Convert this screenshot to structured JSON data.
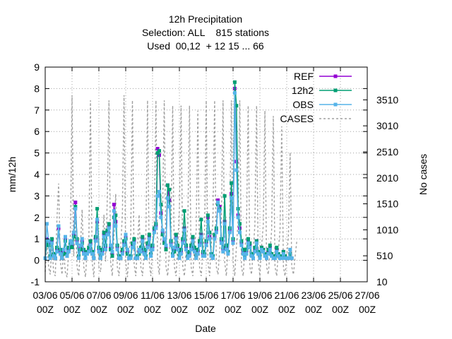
{
  "chart_data": {
    "type": "line",
    "title_lines": [
      "12h Precipitation",
      "Selection: ALL    815 stations",
      "Used  00,12  + 12 15 ... 66"
    ],
    "xlabel": "Date",
    "ylabel": "mm/12h",
    "y2label": "No cases",
    "ylim": [
      -1,
      9
    ],
    "yticks": [
      -1,
      0,
      1,
      2,
      3,
      4,
      5,
      6,
      7,
      8,
      9
    ],
    "y2lim": [
      10,
      4140
    ],
    "y2ticks": [
      10,
      510,
      1010,
      1510,
      2010,
      2510,
      3010,
      3510
    ],
    "xlim": [
      0,
      24
    ],
    "xticks": [
      {
        "x": 0,
        "line1": "03/06",
        "line2": "00Z"
      },
      {
        "x": 2,
        "line1": "05/06",
        "line2": "00Z"
      },
      {
        "x": 4,
        "line1": "07/06",
        "line2": "00Z"
      },
      {
        "x": 6,
        "line1": "09/06",
        "line2": "00Z"
      },
      {
        "x": 8,
        "line1": "11/06",
        "line2": "00Z"
      },
      {
        "x": 10,
        "line1": "13/06",
        "line2": "00Z"
      },
      {
        "x": 12,
        "line1": "15/06",
        "line2": "00Z"
      },
      {
        "x": 14,
        "line1": "17/06",
        "line2": "00Z"
      },
      {
        "x": 16,
        "line1": "19/06",
        "line2": "00Z"
      },
      {
        "x": 18,
        "line1": "21/06",
        "line2": "00Z"
      },
      {
        "x": 20,
        "line1": "23/06",
        "line2": "00Z"
      },
      {
        "x": 22,
        "line1": "25/06",
        "line2": "00Z"
      },
      {
        "x": 24,
        "line1": "27/06",
        "line2": "00Z"
      }
    ],
    "grid": true,
    "legend_position": "top-right",
    "x_step_days": 0.125,
    "series": [
      {
        "name": "REF",
        "color": "#9400d3",
        "axis": "y1",
        "style": "line-points",
        "values": [
          0.1,
          1.0,
          0.8,
          0.2,
          0.9,
          0.3,
          0.1,
          0.5,
          1.5,
          0.4,
          0.1,
          0.4,
          1.0,
          0.3,
          0.5,
          0.8,
          0.7,
          1.2,
          2.7,
          0.9,
          0.2,
          0.6,
          0.9,
          0.4,
          0.1,
          0.4,
          0.5,
          0.8,
          0.4,
          0.1,
          1.0,
          1.8,
          0.5,
          0.2,
          0.4,
          1.2,
          0.6,
          1.3,
          1.6,
          0.6,
          0.3,
          2.6,
          1.8,
          0.6,
          0.2,
          0.1,
          0.4,
          0.8,
          1.1,
          0.4,
          0.1,
          0.2,
          0.7,
          0.9,
          0.1,
          0.2,
          0.4,
          0.5,
          1.0,
          0.4,
          0.2,
          0.7,
          1.1,
          0.3,
          0.6,
          1.4,
          1.6,
          5.2,
          4.9,
          2.2,
          1.3,
          0.9,
          0.6,
          3.5,
          2.8,
          0.8,
          0.3,
          0.5,
          1.1,
          0.6,
          0.2,
          0.4,
          0.9,
          1.5,
          0.6,
          0.2,
          0.3,
          0.6,
          1.0,
          0.5,
          0.2,
          0.4,
          0.8,
          1.2,
          0.3,
          0.3,
          0.8,
          2.0,
          1.1,
          0.3,
          0.2,
          1.1,
          1.4,
          2.8,
          2.5,
          0.9,
          0.5,
          1.8,
          0.6,
          0.4,
          1.4,
          3.1,
          0.9,
          8.0,
          4.6,
          2.1,
          1.5,
          0.8,
          0.4,
          0.2,
          0.4,
          0.9,
          0.7,
          0.3,
          0.1,
          0.5,
          0.9,
          0.4,
          0.2,
          0.6,
          0.5,
          0.3,
          0.1,
          0.4,
          0.6,
          0.3,
          0.1,
          0.2,
          0.5,
          0.3,
          0.1,
          0.2,
          0.4,
          0.2,
          0.1,
          0.1,
          0.3,
          0.1
        ]
      },
      {
        "name": "12h2",
        "color": "#009e73",
        "axis": "y1",
        "style": "line-points",
        "values": [
          0.1,
          0.9,
          0.7,
          0.2,
          1.0,
          0.3,
          0.1,
          0.6,
          1.6,
          0.5,
          0.1,
          0.3,
          0.9,
          0.3,
          0.6,
          0.8,
          0.6,
          1.1,
          2.5,
          1.0,
          0.2,
          0.5,
          0.8,
          0.5,
          0.1,
          0.4,
          0.6,
          0.9,
          0.4,
          0.1,
          1.1,
          2.4,
          0.6,
          0.2,
          0.5,
          1.3,
          0.7,
          1.4,
          1.7,
          0.5,
          0.2,
          2.0,
          2.1,
          0.7,
          0.2,
          0.1,
          0.5,
          0.9,
          1.0,
          0.3,
          0.1,
          0.2,
          0.8,
          1.0,
          0.1,
          0.2,
          0.3,
          0.6,
          1.1,
          0.5,
          0.2,
          0.8,
          1.2,
          0.3,
          0.7,
          1.5,
          1.7,
          5.0,
          5.1,
          2.6,
          1.2,
          0.8,
          0.5,
          3.5,
          3.3,
          0.9,
          0.3,
          0.4,
          1.2,
          0.7,
          0.2,
          0.5,
          1.0,
          2.3,
          0.7,
          0.2,
          0.4,
          0.7,
          1.1,
          0.6,
          0.2,
          0.5,
          0.9,
          1.9,
          0.4,
          0.3,
          0.9,
          2.1,
          1.3,
          0.3,
          0.2,
          1.2,
          1.5,
          2.6,
          2.4,
          1.0,
          0.6,
          3.0,
          0.7,
          0.4,
          1.5,
          3.6,
          1.0,
          8.3,
          7.2,
          2.4,
          1.7,
          0.9,
          0.5,
          0.2,
          0.5,
          1.0,
          0.8,
          0.3,
          0.1,
          0.6,
          0.9,
          0.4,
          0.2,
          0.6,
          0.5,
          0.3,
          0.1,
          0.5,
          0.7,
          0.3,
          0.1,
          0.2,
          0.6,
          0.3,
          0.1,
          0.2,
          0.4,
          0.2,
          0.1,
          0.1,
          0.3,
          0.1
        ]
      },
      {
        "name": "OBS",
        "color": "#56b4e9",
        "axis": "y1",
        "style": "line-points",
        "values": [
          0.1,
          1.7,
          0.9,
          0.1,
          0.8,
          0.2,
          0.1,
          0.4,
          1.6,
          0.3,
          0.1,
          0.5,
          1.1,
          0.2,
          0.4,
          0.9,
          0.8,
          1.3,
          2.4,
          0.8,
          0.1,
          0.7,
          1.0,
          0.3,
          0.1,
          0.3,
          0.4,
          0.7,
          0.3,
          0.1,
          0.9,
          1.9,
          0.4,
          0.1,
          0.3,
          1.1,
          0.5,
          1.2,
          1.5,
          0.7,
          0.4,
          2.3,
          1.6,
          0.5,
          0.1,
          0.1,
          0.3,
          0.7,
          1.2,
          0.5,
          0.1,
          0.1,
          0.6,
          0.8,
          0.1,
          0.1,
          0.5,
          0.4,
          0.9,
          0.3,
          0.1,
          0.6,
          1.0,
          0.2,
          0.5,
          1.3,
          1.5,
          3.0,
          3.2,
          2.0,
          1.4,
          1.0,
          0.7,
          2.9,
          2.5,
          0.7,
          0.2,
          0.6,
          1.0,
          0.5,
          0.1,
          0.3,
          0.8,
          1.4,
          0.5,
          0.1,
          0.2,
          0.5,
          0.9,
          0.4,
          0.1,
          0.3,
          0.7,
          1.1,
          0.2,
          0.2,
          0.7,
          1.8,
          1.0,
          0.2,
          0.1,
          1.0,
          1.3,
          2.7,
          2.3,
          0.8,
          0.4,
          1.7,
          0.5,
          0.3,
          1.3,
          2.9,
          0.8,
          7.8,
          4.2,
          2.0,
          1.3,
          0.7,
          0.3,
          0.1,
          0.3,
          0.8,
          0.6,
          0.2,
          0.1,
          0.4,
          0.8,
          0.3,
          0.1,
          0.5,
          0.4,
          0.2,
          0.1,
          0.3,
          0.5,
          0.2,
          0.1,
          0.1,
          0.4,
          0.2,
          0.1,
          0.1,
          0.3,
          0.1,
          0.1,
          0.1,
          0.5,
          0.1
        ]
      },
      {
        "name": "CASES",
        "color": "#a0a0a0",
        "axis": "y2",
        "style": "dashed",
        "values": [
          200,
          800,
          300,
          150,
          700,
          200,
          120,
          1200,
          1900,
          400,
          150,
          600,
          200,
          100,
          600,
          900,
          3600,
          500,
          1300,
          300,
          120,
          700,
          1400,
          300,
          100,
          600,
          800,
          3500,
          400,
          100,
          900,
          1100,
          300,
          200,
          700,
          1300,
          400,
          1600,
          3500,
          400,
          120,
          900,
          1700,
          300,
          120,
          700,
          1300,
          3600,
          400,
          100,
          600,
          900,
          3500,
          350,
          120,
          700,
          1300,
          300,
          120,
          600,
          900,
          3500,
          400,
          120,
          700,
          1100,
          3500,
          400,
          150,
          900,
          1400,
          3500,
          300,
          120,
          600,
          1000,
          3400,
          300,
          120,
          700,
          1400,
          3400,
          300,
          120,
          600,
          1100,
          3400,
          300,
          120,
          700,
          1000,
          3300,
          300,
          120,
          600,
          1000,
          3500,
          400,
          120,
          700,
          1200,
          3500,
          300,
          150,
          600,
          1100,
          3500,
          400,
          120,
          700,
          1100,
          3500,
          400,
          120,
          700,
          1200,
          3500,
          300,
          120,
          600,
          1000,
          3400,
          300,
          150,
          600,
          1100,
          3400,
          400,
          120,
          700,
          1100,
          3300,
          300,
          150,
          600,
          1000,
          3200,
          300,
          120,
          600,
          1000,
          3000,
          300,
          120,
          500,
          900,
          2500,
          300,
          150,
          500,
          800
        ]
      }
    ]
  }
}
